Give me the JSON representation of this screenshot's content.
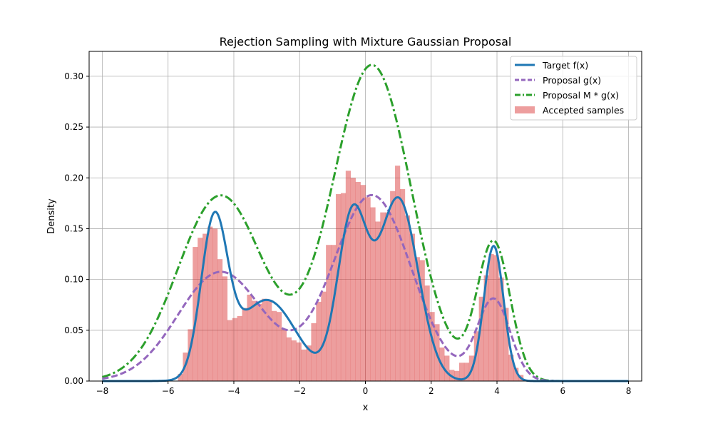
{
  "chart_data": {
    "type": "line",
    "title": "Rejection Sampling with Mixture Gaussian Proposal",
    "xlabel": "x",
    "ylabel": "Density",
    "xlim": [
      -8.4,
      8.4
    ],
    "ylim": [
      0,
      0.3245
    ],
    "xticks": [
      -8,
      -6,
      -4,
      -2,
      0,
      2,
      4,
      6,
      8
    ],
    "yticks": [
      0.0,
      0.05,
      0.1,
      0.15,
      0.2,
      0.25,
      0.3
    ],
    "ytick_labels": [
      "0.00",
      "0.05",
      "0.10",
      "0.15",
      "0.20",
      "0.25",
      "0.30"
    ],
    "xtick_labels": [
      "−8",
      "−6",
      "−4",
      "−2",
      "0",
      "2",
      "4",
      "6",
      "8"
    ],
    "grid": true,
    "legend_position": "top-right",
    "x_range": [
      -8,
      8
    ],
    "series": [
      {
        "name": "Target f(x)",
        "kind": "line",
        "style": "solid",
        "color": "#1f77b4",
        "components": [
          {
            "weight": 0.15,
            "mean": -4.6,
            "sd": 0.4
          },
          {
            "weight": 0.18,
            "mean": -3.0,
            "sd": 0.9
          },
          {
            "weight": 0.18,
            "mean": -0.4,
            "sd": 0.45
          },
          {
            "weight": 0.27,
            "mean": 1.0,
            "sd": 0.6
          },
          {
            "weight": 0.1,
            "mean": 3.9,
            "sd": 0.3
          }
        ]
      },
      {
        "name": "Proposal g(x)",
        "kind": "line",
        "style": "dashed",
        "color": "#9467bd",
        "components": [
          {
            "weight": 0.35,
            "mean": -4.4,
            "sd": 1.3
          },
          {
            "weight": 0.55,
            "mean": 0.2,
            "sd": 1.2
          },
          {
            "weight": 0.1,
            "mean": 3.9,
            "sd": 0.5
          }
        ]
      },
      {
        "name": "Proposal M * g(x)",
        "kind": "line",
        "style": "dashdot",
        "color": "#2ca02c",
        "scale_of": "Proposal g(x)",
        "scale": 1.7
      }
    ],
    "histogram": {
      "name": "Accepted samples",
      "color": "#d62728",
      "opacity": 0.45,
      "bins": [
        {
          "x0": -5.7,
          "x1": -5.55,
          "y": 0.007
        },
        {
          "x0": -5.55,
          "x1": -5.4,
          "y": 0.028
        },
        {
          "x0": -5.4,
          "x1": -5.25,
          "y": 0.051
        },
        {
          "x0": -5.25,
          "x1": -5.1,
          "y": 0.132
        },
        {
          "x0": -5.1,
          "x1": -4.95,
          "y": 0.141
        },
        {
          "x0": -4.95,
          "x1": -4.8,
          "y": 0.145
        },
        {
          "x0": -4.8,
          "x1": -4.65,
          "y": 0.152
        },
        {
          "x0": -4.65,
          "x1": -4.5,
          "y": 0.15
        },
        {
          "x0": -4.5,
          "x1": -4.35,
          "y": 0.12
        },
        {
          "x0": -4.35,
          "x1": -4.2,
          "y": 0.103
        },
        {
          "x0": -4.2,
          "x1": -4.05,
          "y": 0.06
        },
        {
          "x0": -4.05,
          "x1": -3.9,
          "y": 0.062
        },
        {
          "x0": -3.9,
          "x1": -3.75,
          "y": 0.064
        },
        {
          "x0": -3.75,
          "x1": -3.6,
          "y": 0.072
        },
        {
          "x0": -3.6,
          "x1": -3.45,
          "y": 0.085
        },
        {
          "x0": -3.45,
          "x1": -3.3,
          "y": 0.079
        },
        {
          "x0": -3.3,
          "x1": -3.15,
          "y": 0.076
        },
        {
          "x0": -3.15,
          "x1": -3.0,
          "y": 0.081
        },
        {
          "x0": -3.0,
          "x1": -2.85,
          "y": 0.08
        },
        {
          "x0": -2.85,
          "x1": -2.7,
          "y": 0.069
        },
        {
          "x0": -2.7,
          "x1": -2.55,
          "y": 0.068
        },
        {
          "x0": -2.55,
          "x1": -2.4,
          "y": 0.051
        },
        {
          "x0": -2.4,
          "x1": -2.25,
          "y": 0.043
        },
        {
          "x0": -2.25,
          "x1": -2.1,
          "y": 0.04
        },
        {
          "x0": -2.1,
          "x1": -1.95,
          "y": 0.038
        },
        {
          "x0": -1.95,
          "x1": -1.8,
          "y": 0.031
        },
        {
          "x0": -1.8,
          "x1": -1.65,
          "y": 0.035
        },
        {
          "x0": -1.65,
          "x1": -1.5,
          "y": 0.057
        },
        {
          "x0": -1.5,
          "x1": -1.35,
          "y": 0.078
        },
        {
          "x0": -1.35,
          "x1": -1.2,
          "y": 0.088
        },
        {
          "x0": -1.2,
          "x1": -1.05,
          "y": 0.134
        },
        {
          "x0": -1.05,
          "x1": -0.9,
          "y": 0.134
        },
        {
          "x0": -0.9,
          "x1": -0.75,
          "y": 0.184
        },
        {
          "x0": -0.75,
          "x1": -0.6,
          "y": 0.185
        },
        {
          "x0": -0.6,
          "x1": -0.45,
          "y": 0.207
        },
        {
          "x0": -0.45,
          "x1": -0.3,
          "y": 0.2
        },
        {
          "x0": -0.3,
          "x1": -0.15,
          "y": 0.196
        },
        {
          "x0": -0.15,
          "x1": 0.0,
          "y": 0.193
        },
        {
          "x0": 0.0,
          "x1": 0.15,
          "y": 0.181
        },
        {
          "x0": 0.15,
          "x1": 0.3,
          "y": 0.171
        },
        {
          "x0": 0.3,
          "x1": 0.45,
          "y": 0.157
        },
        {
          "x0": 0.45,
          "x1": 0.6,
          "y": 0.166
        },
        {
          "x0": 0.6,
          "x1": 0.75,
          "y": 0.166
        },
        {
          "x0": 0.75,
          "x1": 0.9,
          "y": 0.187
        },
        {
          "x0": 0.9,
          "x1": 1.05,
          "y": 0.212
        },
        {
          "x0": 1.05,
          "x1": 1.2,
          "y": 0.189
        },
        {
          "x0": 1.2,
          "x1": 1.35,
          "y": 0.163
        },
        {
          "x0": 1.35,
          "x1": 1.5,
          "y": 0.145
        },
        {
          "x0": 1.5,
          "x1": 1.65,
          "y": 0.122
        },
        {
          "x0": 1.65,
          "x1": 1.8,
          "y": 0.119
        },
        {
          "x0": 1.8,
          "x1": 1.95,
          "y": 0.094
        },
        {
          "x0": 1.95,
          "x1": 2.1,
          "y": 0.068
        },
        {
          "x0": 2.1,
          "x1": 2.25,
          "y": 0.056
        },
        {
          "x0": 2.25,
          "x1": 2.4,
          "y": 0.033
        },
        {
          "x0": 2.4,
          "x1": 2.55,
          "y": 0.025
        },
        {
          "x0": 2.55,
          "x1": 2.7,
          "y": 0.011
        },
        {
          "x0": 2.7,
          "x1": 2.85,
          "y": 0.01
        },
        {
          "x0": 2.85,
          "x1": 3.0,
          "y": 0.018
        },
        {
          "x0": 3.0,
          "x1": 3.15,
          "y": 0.018
        },
        {
          "x0": 3.15,
          "x1": 3.3,
          "y": 0.025
        },
        {
          "x0": 3.3,
          "x1": 3.45,
          "y": 0.049
        },
        {
          "x0": 3.45,
          "x1": 3.6,
          "y": 0.083
        },
        {
          "x0": 3.6,
          "x1": 3.75,
          "y": 0.104
        },
        {
          "x0": 3.75,
          "x1": 3.9,
          "y": 0.125
        },
        {
          "x0": 3.9,
          "x1": 4.05,
          "y": 0.124
        },
        {
          "x0": 4.05,
          "x1": 4.2,
          "y": 0.102
        },
        {
          "x0": 4.2,
          "x1": 4.35,
          "y": 0.072
        },
        {
          "x0": 4.35,
          "x1": 4.5,
          "y": 0.026
        },
        {
          "x0": 4.5,
          "x1": 4.65,
          "y": 0.013
        },
        {
          "x0": 4.65,
          "x1": 4.8,
          "y": 0.006
        }
      ]
    },
    "legend": [
      {
        "label": "Target f(x)",
        "kind": "line",
        "style": "solid",
        "color": "#1f77b4"
      },
      {
        "label": "Proposal g(x)",
        "kind": "line",
        "style": "dashed",
        "color": "#9467bd"
      },
      {
        "label": "Proposal M * g(x)",
        "kind": "line",
        "style": "dashdot",
        "color": "#2ca02c"
      },
      {
        "label": "Accepted samples",
        "kind": "patch",
        "color": "#d62728"
      }
    ]
  }
}
